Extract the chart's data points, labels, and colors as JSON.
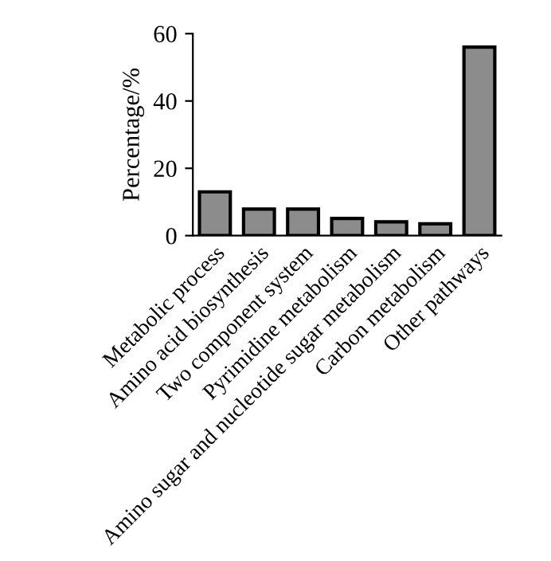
{
  "chart_data": {
    "type": "bar",
    "ylabel": "Percentage/%",
    "categories": [
      "Metabolic process",
      "Amino acid biosynthesis",
      "Two component system",
      "Pyrimidine metabolism",
      "Amino sugar and nucleotide sugar metabolism",
      "Carbon metabolism",
      "Other pathways"
    ],
    "values": [
      13.0,
      7.9,
      7.9,
      5.1,
      4.1,
      3.5,
      56.0
    ],
    "color": "#8c8c8c",
    "ylim": [
      0,
      60
    ],
    "yticks": [
      0,
      20,
      40,
      60
    ],
    "grid": false
  }
}
